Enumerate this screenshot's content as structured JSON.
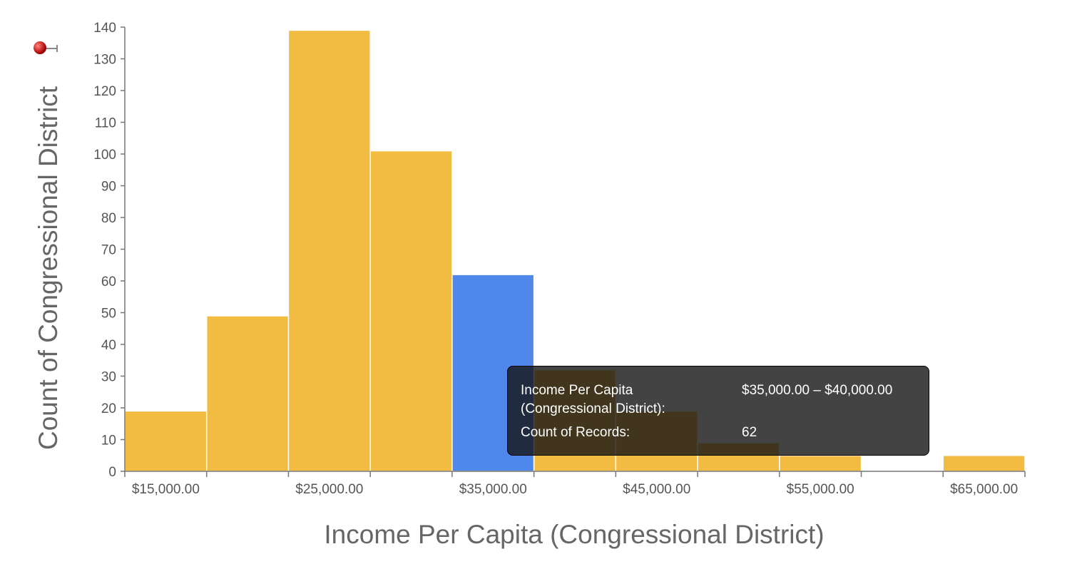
{
  "chart_data": {
    "type": "bar",
    "histogram": true,
    "bins": [
      {
        "start": 12500,
        "end": 17500,
        "count": 19,
        "color": "#F2BB42"
      },
      {
        "start": 17500,
        "end": 22500,
        "count": 49,
        "color": "#F2BB42"
      },
      {
        "start": 22500,
        "end": 27500,
        "count": 139,
        "color": "#F2BB42"
      },
      {
        "start": 27500,
        "end": 32500,
        "count": 101,
        "color": "#F2BB42"
      },
      {
        "start": 32500,
        "end": 37500,
        "count": 62,
        "color": "#4F88EA"
      },
      {
        "start": 37500,
        "end": 42500,
        "count": 32,
        "color": "#F2BB42"
      },
      {
        "start": 42500,
        "end": 47500,
        "count": 19,
        "color": "#F2BB42"
      },
      {
        "start": 47500,
        "end": 52500,
        "count": 9,
        "color": "#F2BB42"
      },
      {
        "start": 52500,
        "end": 57500,
        "count": 5,
        "color": "#F2BB42"
      },
      {
        "start": 57500,
        "end": 62500,
        "count": 0,
        "color": "#F2BB42"
      },
      {
        "start": 62500,
        "end": 67500,
        "count": 5,
        "color": "#F2BB42"
      }
    ],
    "xlim": [
      12500,
      67500
    ],
    "ylim": [
      0,
      140
    ],
    "xticks": [
      {
        "value": 15000,
        "label": "$15,000.00"
      },
      {
        "value": 25000,
        "label": "$25,000.00"
      },
      {
        "value": 35000,
        "label": "$35,000.00"
      },
      {
        "value": 45000,
        "label": "$45,000.00"
      },
      {
        "value": 55000,
        "label": "$55,000.00"
      },
      {
        "value": 65000,
        "label": "$65,000.00"
      }
    ],
    "yticks": [
      0,
      10,
      20,
      30,
      40,
      50,
      60,
      70,
      80,
      90,
      100,
      110,
      120,
      130,
      140
    ],
    "xlabel": "Income Per Capita (Congressional District)",
    "ylabel": "Count of Congressional District",
    "highlight_color": "#4F88EA",
    "bar_color": "#F2BB42"
  },
  "tooltip": {
    "row1_key": "Income Per Capita (Congressional District):",
    "row1_value": "$35,000.00 – $40,000.00",
    "row2_key": "Count of Records:",
    "row2_value": "62"
  },
  "pin_icon": "pushpin-icon"
}
